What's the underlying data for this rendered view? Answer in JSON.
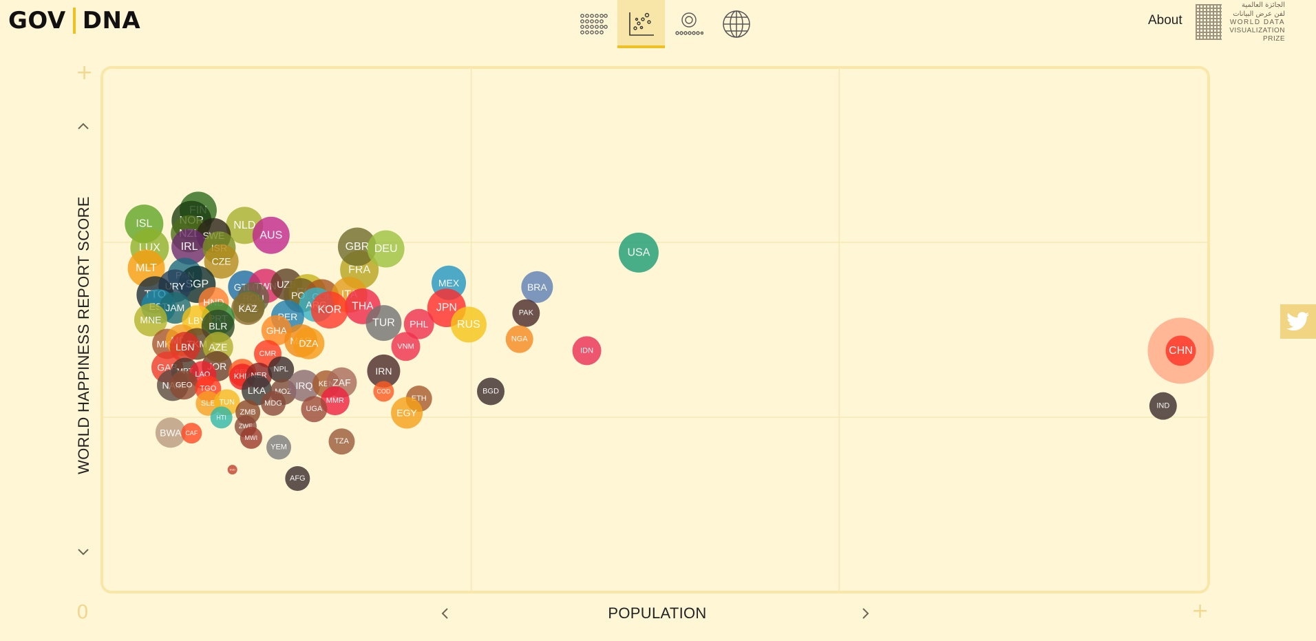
{
  "header": {
    "brand_left": "GOV",
    "brand_right": "DNA",
    "about": "About",
    "prize_arabic_1": "الجائزة العالمية",
    "prize_arabic_2": "لفن عرض البيانات",
    "prize_en_1": "WORLD DATA",
    "prize_en_2": "VISUALIZATION PRIZE",
    "view_tabs": [
      {
        "icon": "grid-view-icon",
        "active": false
      },
      {
        "icon": "scatter-view-icon",
        "active": true
      },
      {
        "icon": "ring-view-icon",
        "active": false
      },
      {
        "icon": "globe-view-icon",
        "active": false
      }
    ]
  },
  "controls": {
    "zoom_in_top": "+",
    "zoom_in_right": "+",
    "origin": "0",
    "y_up": "˄",
    "y_down": "˅",
    "x_left": "‹",
    "x_right": "›"
  },
  "colors": {
    "background": "#fff6d6",
    "frame": "#f8e7a8",
    "grid": "#f5e8b4",
    "accent": "#f0c020"
  },
  "chart_data": {
    "type": "scatter",
    "title": "",
    "xlabel": "POPULATION",
    "ylabel": "WORLD HAPPINESS REPORT SCORE",
    "grid": true,
    "note": "Bubble chart. x and y in relative axis units (0 = left/bottom, 1 = right/top of plot); no tick values are printed.",
    "xlim": [
      0,
      1
    ],
    "ylim": [
      0,
      1
    ],
    "points": [
      {
        "label": "FIN",
        "x": 0.086,
        "y": 0.729,
        "r": 27,
        "color": "#2e6b1c"
      },
      {
        "label": "ISL",
        "x": 0.037,
        "y": 0.703,
        "r": 28,
        "color": "#5fa526"
      },
      {
        "label": "NOR",
        "x": 0.08,
        "y": 0.709,
        "r": 29,
        "color": "#1b3d12"
      },
      {
        "label": "NLD",
        "x": 0.128,
        "y": 0.7,
        "r": 27,
        "color": "#a8b02e"
      },
      {
        "label": "NZL",
        "x": 0.078,
        "y": 0.684,
        "r": 27,
        "color": "#4d6d1c"
      },
      {
        "label": "SWE",
        "x": 0.1,
        "y": 0.681,
        "r": 25,
        "color": "#2a2418"
      },
      {
        "label": "AUS",
        "x": 0.152,
        "y": 0.681,
        "r": 27,
        "color": "#c0278e"
      },
      {
        "label": "LUX",
        "x": 0.042,
        "y": 0.657,
        "r": 28,
        "color": "#8eb22c"
      },
      {
        "label": "IRL",
        "x": 0.078,
        "y": 0.659,
        "r": 26,
        "color": "#6b2a6e"
      },
      {
        "label": "ISR",
        "x": 0.105,
        "y": 0.657,
        "r": 24,
        "color": "#7b8f23"
      },
      {
        "label": "CZE",
        "x": 0.107,
        "y": 0.631,
        "r": 25,
        "color": "#b38a1a"
      },
      {
        "label": "MLT",
        "x": 0.039,
        "y": 0.618,
        "r": 27,
        "color": "#f59d10"
      },
      {
        "label": "FRA",
        "x": 0.232,
        "y": 0.615,
        "r": 28,
        "color": "#b7a21d"
      },
      {
        "label": "GBR",
        "x": 0.23,
        "y": 0.659,
        "r": 28,
        "color": "#6f6d2b"
      },
      {
        "label": "DEU",
        "x": 0.256,
        "y": 0.655,
        "r": 27,
        "color": "#9cc23f"
      },
      {
        "label": "USA",
        "x": 0.485,
        "y": 0.648,
        "r": 29,
        "color": "#1a9c73"
      },
      {
        "label": "PAN",
        "x": 0.074,
        "y": 0.605,
        "r": 25,
        "color": "#1a6a80"
      },
      {
        "label": "SGP",
        "x": 0.085,
        "y": 0.587,
        "r": 27,
        "color": "#0f2e2e"
      },
      {
        "label": "URY",
        "x": 0.065,
        "y": 0.584,
        "r": 24,
        "color": "#27405a"
      },
      {
        "label": "TTO",
        "x": 0.047,
        "y": 0.567,
        "r": 27,
        "color": "#1c2f3c"
      },
      {
        "label": "GTM",
        "x": 0.128,
        "y": 0.582,
        "r": 24,
        "color": "#1b6ea7"
      },
      {
        "label": "TWN",
        "x": 0.147,
        "y": 0.584,
        "r": 25,
        "color": "#d92565"
      },
      {
        "label": "UZB",
        "x": 0.166,
        "y": 0.587,
        "r": 23,
        "color": "#5d4127"
      },
      {
        "label": "ESP",
        "x": 0.185,
        "y": 0.571,
        "r": 27,
        "color": "#c7b418"
      },
      {
        "label": "POL",
        "x": 0.179,
        "y": 0.566,
        "r": 25,
        "color": "#6f5a29"
      },
      {
        "label": "COL",
        "x": 0.198,
        "y": 0.564,
        "r": 25,
        "color": "#a8561f"
      },
      {
        "label": "ITA",
        "x": 0.223,
        "y": 0.567,
        "r": 26,
        "color": "#e49c1a"
      },
      {
        "label": "ROU",
        "x": 0.136,
        "y": 0.561,
        "r": 23,
        "color": "#6a6045"
      },
      {
        "label": "HND",
        "x": 0.1,
        "y": 0.553,
        "r": 22,
        "color": "#ff7f32"
      },
      {
        "label": "EST",
        "x": 0.05,
        "y": 0.545,
        "r": 25,
        "color": "#1b8aa8"
      },
      {
        "label": "JAM",
        "x": 0.065,
        "y": 0.542,
        "r": 23,
        "color": "#1e6b72"
      },
      {
        "label": "ARG",
        "x": 0.193,
        "y": 0.548,
        "r": 25,
        "color": "#36b3c8"
      },
      {
        "label": "BOL",
        "x": 0.132,
        "y": 0.544,
        "r": 23,
        "color": "#4d7e36"
      },
      {
        "label": "KAZ",
        "x": 0.131,
        "y": 0.541,
        "r": 24,
        "color": "#8c6b2f"
      },
      {
        "label": "THA",
        "x": 0.235,
        "y": 0.545,
        "r": 26,
        "color": "#ef2748"
      },
      {
        "label": "KOR",
        "x": 0.205,
        "y": 0.538,
        "r": 27,
        "color": "#ff3a2a"
      },
      {
        "label": "MEX",
        "x": 0.313,
        "y": 0.59,
        "r": 25,
        "color": "#2296c2"
      },
      {
        "label": "JPN",
        "x": 0.311,
        "y": 0.542,
        "r": 28,
        "color": "#ff2a2a"
      },
      {
        "label": "BRA",
        "x": 0.393,
        "y": 0.582,
        "r": 23,
        "color": "#5b7fb4"
      },
      {
        "label": "PER",
        "x": 0.167,
        "y": 0.525,
        "r": 24,
        "color": "#1f7fb0"
      },
      {
        "label": "MNE",
        "x": 0.043,
        "y": 0.519,
        "r": 24,
        "color": "#b3b42a"
      },
      {
        "label": "PRT",
        "x": 0.104,
        "y": 0.522,
        "r": 24,
        "color": "#2e8b33"
      },
      {
        "label": "LBY",
        "x": 0.085,
        "y": 0.518,
        "r": 22,
        "color": "#f5c21a"
      },
      {
        "label": "BLR",
        "x": 0.104,
        "y": 0.507,
        "r": 24,
        "color": "#2a4a24"
      },
      {
        "label": "TUR",
        "x": 0.254,
        "y": 0.513,
        "r": 26,
        "color": "#727272"
      },
      {
        "label": "PHL",
        "x": 0.286,
        "y": 0.511,
        "r": 22,
        "color": "#ef2f4e"
      },
      {
        "label": "RUS",
        "x": 0.331,
        "y": 0.51,
        "r": 26,
        "color": "#f5c518"
      },
      {
        "label": "PAK",
        "x": 0.383,
        "y": 0.532,
        "r": 20,
        "color": "#4a2a2a"
      },
      {
        "label": "GHA",
        "x": 0.157,
        "y": 0.499,
        "r": 22,
        "color": "#ff8a20"
      },
      {
        "label": "MKD",
        "x": 0.058,
        "y": 0.473,
        "r": 22,
        "color": "#a55630"
      },
      {
        "label": "MDA",
        "x": 0.071,
        "y": 0.48,
        "r": 23,
        "color": "#f2a020"
      },
      {
        "label": "TKM",
        "x": 0.085,
        "y": 0.473,
        "r": 23,
        "color": "#5a4228"
      },
      {
        "label": "LBN",
        "x": 0.074,
        "y": 0.467,
        "r": 22,
        "color": "#d93026"
      },
      {
        "label": "AZE",
        "x": 0.104,
        "y": 0.467,
        "r": 22,
        "color": "#b0b02c"
      },
      {
        "label": "MAR",
        "x": 0.179,
        "y": 0.479,
        "r": 24,
        "color": "#f08a15"
      },
      {
        "label": "DZA",
        "x": 0.186,
        "y": 0.474,
        "r": 23,
        "color": "#f59a15"
      },
      {
        "label": "VNM",
        "x": 0.274,
        "y": 0.468,
        "r": 21,
        "color": "#ef2f4e"
      },
      {
        "label": "NGA",
        "x": 0.377,
        "y": 0.482,
        "r": 20,
        "color": "#f58a20"
      },
      {
        "label": "IDN",
        "x": 0.438,
        "y": 0.46,
        "r": 21,
        "color": "#ea2e55"
      },
      {
        "label": "CHN",
        "x": 0.976,
        "y": 0.46,
        "r": 48,
        "color": "#ff4030"
      },
      {
        "label": "CMR",
        "x": 0.149,
        "y": 0.454,
        "r": 20,
        "color": "#ff3a20"
      },
      {
        "label": "GAB",
        "x": 0.058,
        "y": 0.428,
        "r": 23,
        "color": "#ef3a2a"
      },
      {
        "label": "MRT",
        "x": 0.074,
        "y": 0.42,
        "r": 20,
        "color": "#4a3a2e"
      },
      {
        "label": "JOR",
        "x": 0.103,
        "y": 0.43,
        "r": 22,
        "color": "#6a3e2a"
      },
      {
        "label": "LAO",
        "x": 0.09,
        "y": 0.414,
        "r": 20,
        "color": "#ef2030"
      },
      {
        "label": "SEN",
        "x": 0.126,
        "y": 0.418,
        "r": 20,
        "color": "#ff5a20"
      },
      {
        "label": "KHM",
        "x": 0.126,
        "y": 0.41,
        "r": 19,
        "color": "#ef2020"
      },
      {
        "label": "NER",
        "x": 0.141,
        "y": 0.412,
        "r": 19,
        "color": "#8a2222"
      },
      {
        "label": "NPL",
        "x": 0.161,
        "y": 0.424,
        "r": 19,
        "color": "#3a2a2a"
      },
      {
        "label": "IRN",
        "x": 0.254,
        "y": 0.421,
        "r": 24,
        "color": "#4a2a2a"
      },
      {
        "label": "NAM",
        "x": 0.063,
        "y": 0.394,
        "r": 23,
        "color": "#5a4a42"
      },
      {
        "label": "GEO",
        "x": 0.073,
        "y": 0.394,
        "r": 21,
        "color": "#8a4a32"
      },
      {
        "label": "TGO",
        "x": 0.095,
        "y": 0.387,
        "r": 19,
        "color": "#ff3a20"
      },
      {
        "label": "LKA",
        "x": 0.139,
        "y": 0.384,
        "r": 22,
        "color": "#3a3a3a"
      },
      {
        "label": "MOZ",
        "x": 0.163,
        "y": 0.381,
        "r": 19,
        "color": "#7a4a3a"
      },
      {
        "label": "IRQ",
        "x": 0.182,
        "y": 0.393,
        "r": 23,
        "color": "#8a6a72"
      },
      {
        "label": "KEN",
        "x": 0.202,
        "y": 0.396,
        "r": 20,
        "color": "#a55a2a"
      },
      {
        "label": "ZAF",
        "x": 0.216,
        "y": 0.399,
        "r": 22,
        "color": "#a86a5a"
      },
      {
        "label": "COD",
        "x": 0.254,
        "y": 0.382,
        "r": 15,
        "color": "#ff5a20"
      },
      {
        "label": "BGD",
        "x": 0.351,
        "y": 0.382,
        "r": 20,
        "color": "#3a2a2a"
      },
      {
        "label": "SLE",
        "x": 0.095,
        "y": 0.359,
        "r": 18,
        "color": "#f5a020"
      },
      {
        "label": "TUN",
        "x": 0.112,
        "y": 0.361,
        "r": 19,
        "color": "#f5b81e"
      },
      {
        "label": "MDG",
        "x": 0.154,
        "y": 0.359,
        "r": 18,
        "color": "#8a4a3a"
      },
      {
        "label": "MMR",
        "x": 0.21,
        "y": 0.364,
        "r": 21,
        "color": "#ef2040"
      },
      {
        "label": "ETH",
        "x": 0.286,
        "y": 0.368,
        "r": 19,
        "color": "#a55a2a"
      },
      {
        "label": "ZMB",
        "x": 0.131,
        "y": 0.342,
        "r": 18,
        "color": "#8a4a2a"
      },
      {
        "label": "UGA",
        "x": 0.191,
        "y": 0.348,
        "r": 19,
        "color": "#9a4a3a"
      },
      {
        "label": "HTI",
        "x": 0.107,
        "y": 0.332,
        "r": 16,
        "color": "#2fb8a8"
      },
      {
        "label": "EGY",
        "x": 0.275,
        "y": 0.341,
        "r": 23,
        "color": "#f5a018"
      },
      {
        "label": "IND",
        "x": 0.96,
        "y": 0.354,
        "r": 20,
        "color": "#3a2a2a"
      },
      {
        "label": "BWA",
        "x": 0.061,
        "y": 0.303,
        "r": 22,
        "color": "#b89a7e"
      },
      {
        "label": "CAF",
        "x": 0.08,
        "y": 0.302,
        "r": 15,
        "color": "#ff4a20"
      },
      {
        "label": "ZWE",
        "x": 0.129,
        "y": 0.315,
        "r": 16,
        "color": "#8a4a3a"
      },
      {
        "label": "MWI",
        "x": 0.134,
        "y": 0.293,
        "r": 16,
        "color": "#9a3a2a"
      },
      {
        "label": "YEM",
        "x": 0.159,
        "y": 0.275,
        "r": 18,
        "color": "#7a7a7a"
      },
      {
        "label": "TZA",
        "x": 0.216,
        "y": 0.286,
        "r": 19,
        "color": "#9a5a3a"
      },
      {
        "label": "SSD",
        "x": 0.117,
        "y": 0.232,
        "r": 7,
        "color": "#c0402a"
      },
      {
        "label": "AFG",
        "x": 0.176,
        "y": 0.215,
        "r": 18,
        "color": "#3a2a2a"
      }
    ]
  }
}
